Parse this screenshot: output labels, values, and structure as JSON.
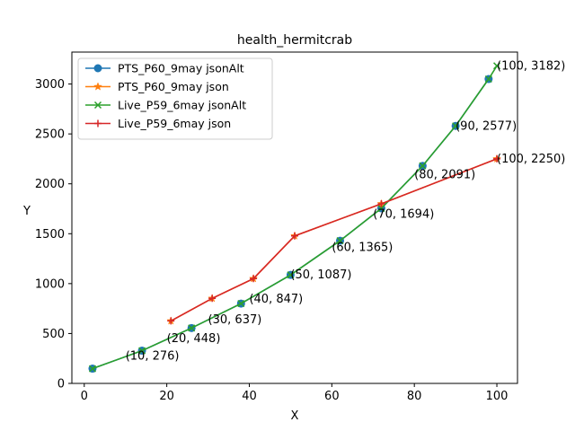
{
  "chart_data": {
    "type": "line",
    "title": "health_hermitcrab",
    "xlabel": "X",
    "ylabel": "Y",
    "xlim": [
      -3,
      105
    ],
    "ylim": [
      0,
      3320
    ],
    "xticks": [
      0,
      20,
      40,
      60,
      80,
      100
    ],
    "yticks": [
      0,
      500,
      1000,
      1500,
      2000,
      2500,
      3000
    ],
    "grid": false,
    "legend_position": "upper-left",
    "series": [
      {
        "name": "PTS_P60_9may jsonAlt",
        "color": "#1f77b4",
        "marker": "circle",
        "x": [
          2,
          14,
          26,
          38,
          50,
          62,
          72,
          82,
          90,
          98
        ],
        "y": [
          148,
          328,
          555,
          800,
          1087,
          1430,
          1754,
          2180,
          2580,
          3050
        ]
      },
      {
        "name": "PTS_P60_9may json",
        "color": "#ff7f0e",
        "marker": "star",
        "x": [
          21,
          31,
          41,
          51,
          72,
          100
        ],
        "y": [
          626,
          852,
          1050,
          1478,
          1800,
          2250
        ]
      },
      {
        "name": "Live_P59_6may jsonAlt",
        "color": "#2ca02c",
        "marker": "x",
        "x": [
          2,
          14,
          26,
          38,
          50,
          62,
          72,
          82,
          90,
          98,
          100
        ],
        "y": [
          148,
          328,
          555,
          800,
          1087,
          1430,
          1754,
          2180,
          2580,
          3050,
          3182
        ]
      },
      {
        "name": "Live_P59_6may json",
        "color": "#d62728",
        "marker": "plus",
        "x": [
          21,
          31,
          41,
          51,
          72,
          100
        ],
        "y": [
          626,
          852,
          1050,
          1478,
          1800,
          2250
        ]
      }
    ],
    "annotations": [
      {
        "x": 10,
        "y": 276,
        "text": "(10, 276)"
      },
      {
        "x": 20,
        "y": 448,
        "text": "(20, 448)"
      },
      {
        "x": 30,
        "y": 637,
        "text": "(30, 637)"
      },
      {
        "x": 40,
        "y": 847,
        "text": "(40, 847)"
      },
      {
        "x": 50,
        "y": 1087,
        "text": "(50, 1087)"
      },
      {
        "x": 60,
        "y": 1365,
        "text": "(60, 1365)"
      },
      {
        "x": 70,
        "y": 1694,
        "text": "(70, 1694)"
      },
      {
        "x": 80,
        "y": 2091,
        "text": "(80, 2091)"
      },
      {
        "x": 90,
        "y": 2577,
        "text": "(90, 2577)"
      },
      {
        "x": 100,
        "y": 3182,
        "text": "(100, 3182)"
      },
      {
        "x": 100,
        "y": 2250,
        "text": "(100, 2250)"
      }
    ]
  }
}
